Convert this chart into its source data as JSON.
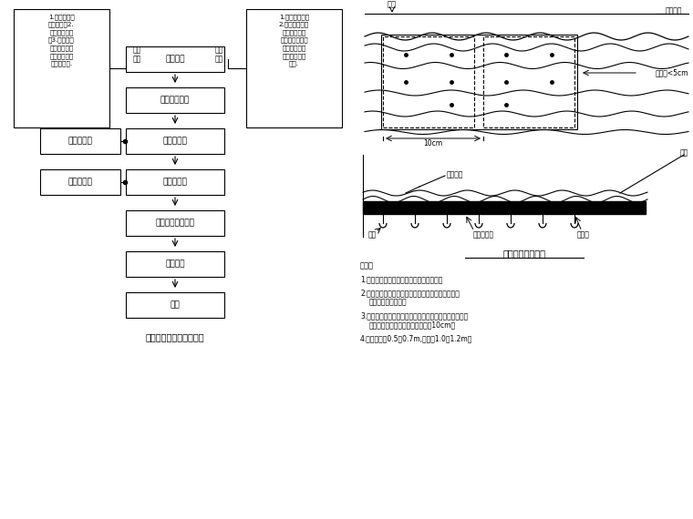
{
  "bg_color": "#ffffff",
  "flowchart_title": "防水板铺设施工工艺框图",
  "diagram_title": "防水板铺设示意图",
  "note_title": "说明：",
  "note1": "1.防水板在初期支护层层面是通过定位件；",
  "note2": "2.防水板铺设时，搜色面不得有键朳头外露，对此不",
  "note2b": "平部位应进行补撕；",
  "note3": "3.土工层用射钉固定，防水板带连在专用定位层上，掍连",
  "note3b": "处用热容合拆接，掍消幅度不小于10cm；",
  "note4": "4.射钉间距约0.5～0.7m,边墙【1.0～1.2m；",
  "box_zhuanbei": "准备工作",
  "box_anshe": "安设排水盲沟",
  "box_tugong": "土工层工程",
  "box_fangshui": "防水板置度",
  "box_hanjie": "防水板搜接缝焚接",
  "box_zhiliang": "质量检查",
  "box_yanshou": "验收",
  "box_sheding": "准备射钉梒",
  "box_rongqi": "手动热容器",
  "label_dongwai": "洞外\n准备",
  "label_dongnei": "洞内\n准备",
  "bigbox_left": "1.防水板材料\n质量检查；2.\n回弹缝搜接模\n；3.防水板分\n拥判侧郊二级\n领取，将操刽\n的对称匪货.",
  "bigbox_right": "1.工作台就位；\n2.搜连锆朳头，\n外露剔断，锆\n朳头用密封料封\n密住，剔断、\n键丝头用砂浆\n抓平.",
  "label_sheding_top": "射钉",
  "label_suidao": "隧道纵向",
  "label_nianjie": "粘接宽<5cm",
  "label_10cm": "10cm",
  "label_relian": "热容坠片",
  "label_hunning": "混凝",
  "label_sheding2": "射钉",
  "label_jvyi": "聚乙防水板",
  "label_tugong2": "土工膜"
}
